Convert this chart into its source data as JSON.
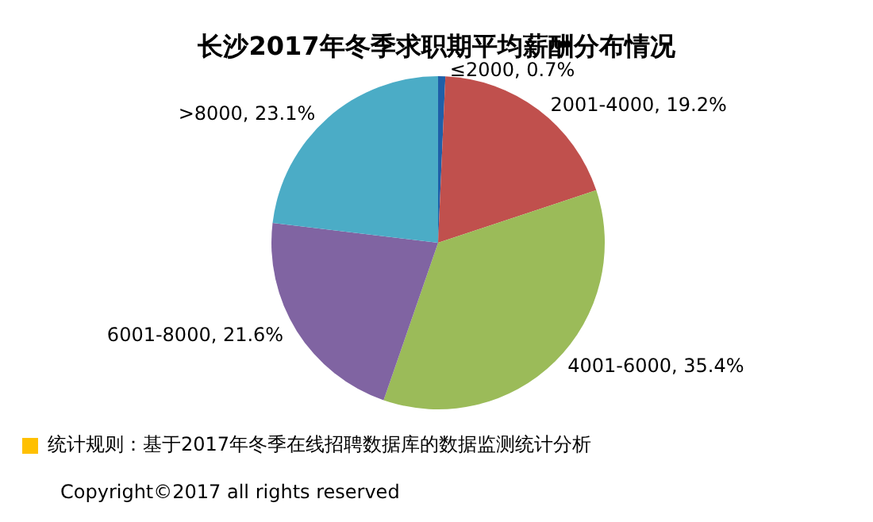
{
  "chart_data": {
    "type": "pie",
    "title": "长沙2017年冬季求职期平均薪酬分布情况",
    "categories": [
      "≤2000",
      "2001-4000",
      "4001-6000",
      "6001-8000",
      ">8000"
    ],
    "values": [
      0.7,
      19.2,
      35.4,
      21.6,
      23.1
    ],
    "value_labels": [
      "0.7%",
      "19.2%",
      "35.4%",
      "21.6%",
      "23.1%"
    ],
    "colors": [
      "#1f5fa8",
      "#c0504d",
      "#9bbb59",
      "#8064a2",
      "#4bacc6"
    ],
    "legend": false,
    "annotations": [
      "统计规则：基于2017年冬季在线招聘数据库的数据监测统计分析",
      "Copyright©2017 all rights reserved"
    ]
  }
}
